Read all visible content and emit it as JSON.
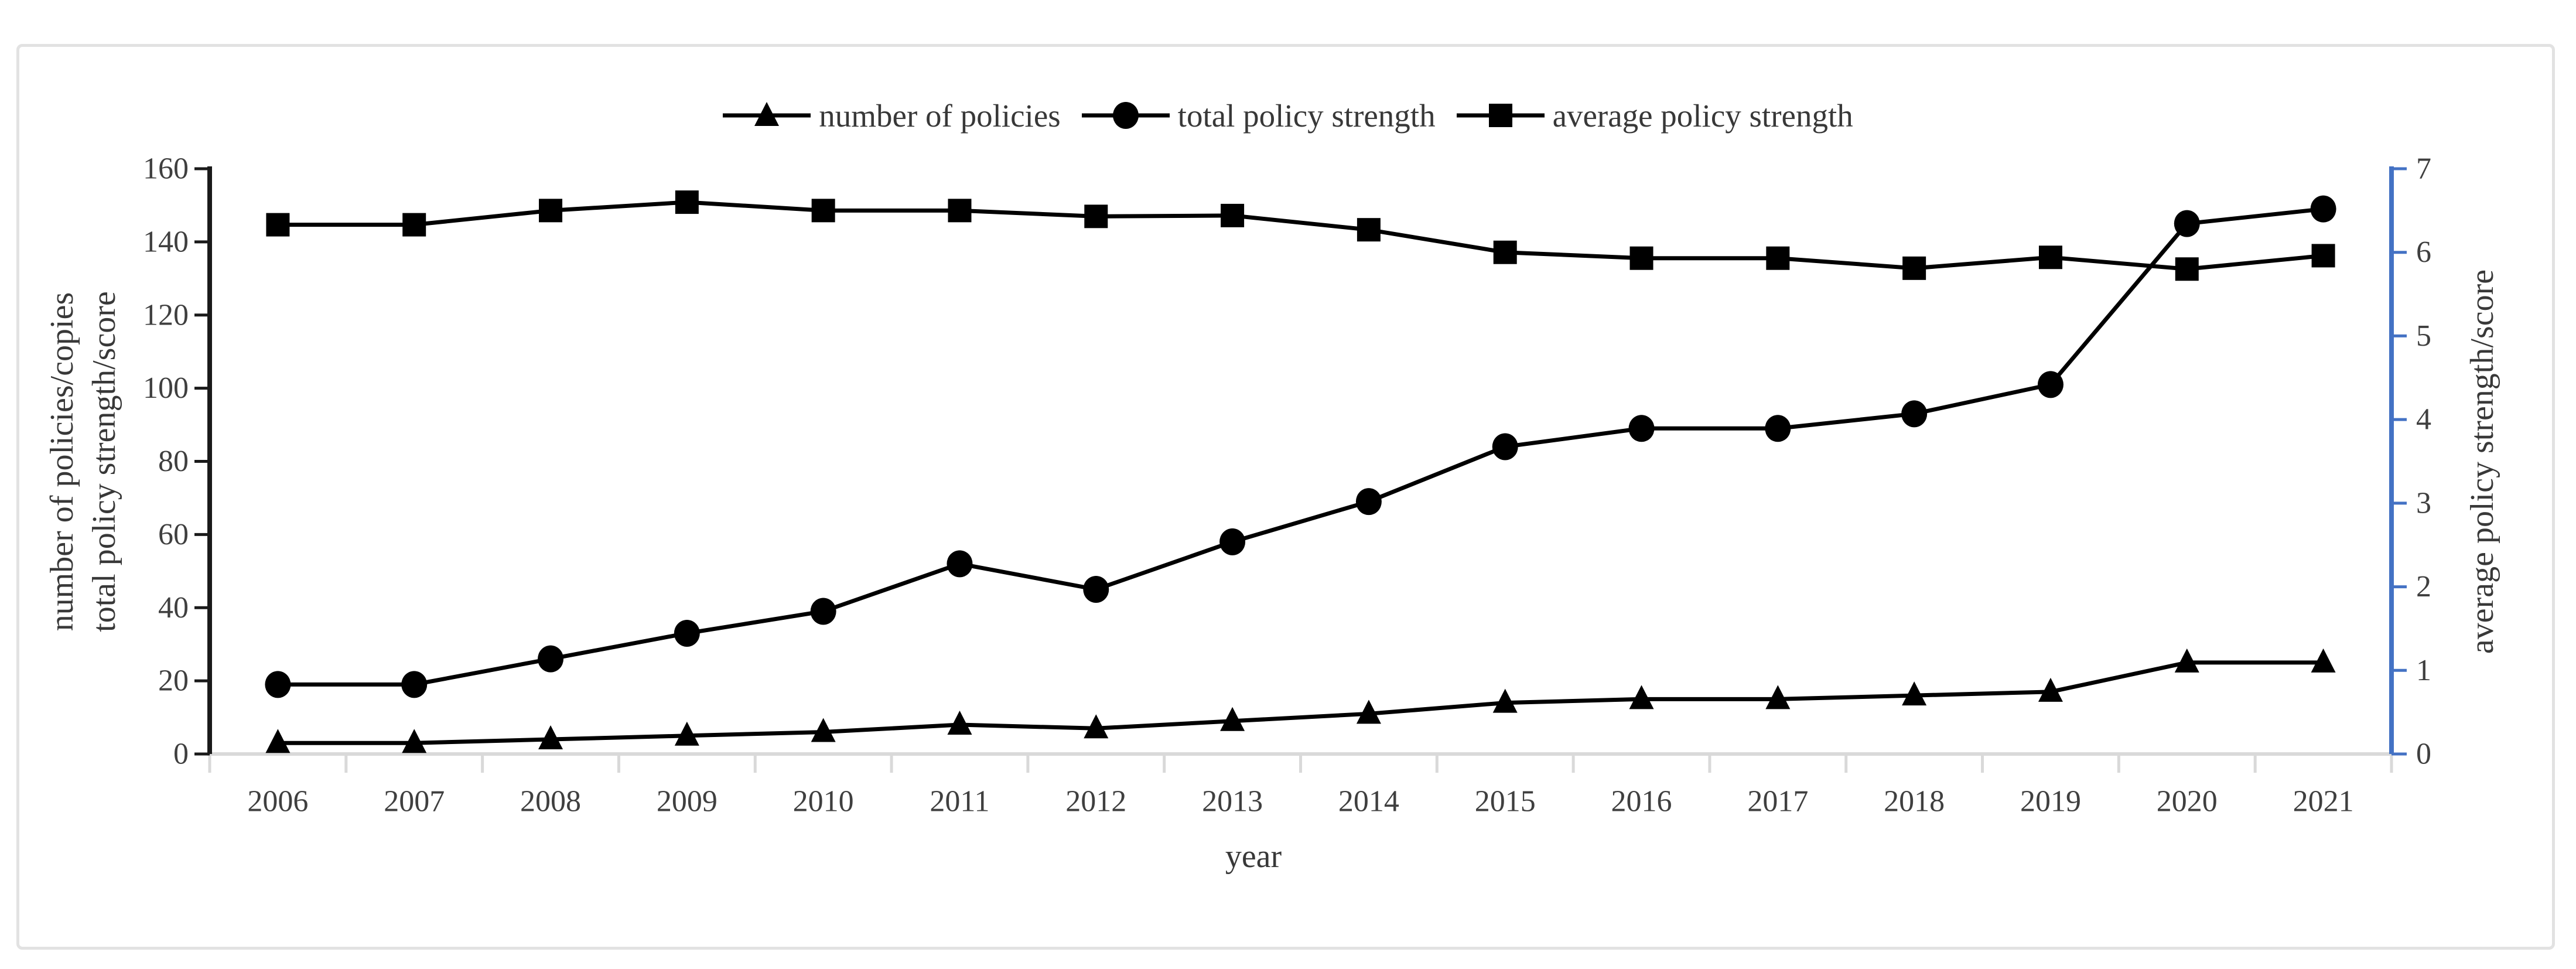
{
  "chart_data": {
    "type": "line",
    "title": "",
    "x_categories": [
      "2006",
      "2007",
      "2008",
      "2009",
      "2010",
      "2011",
      "2012",
      "2013",
      "2014",
      "2015",
      "2016",
      "2017",
      "2018",
      "2019",
      "2020",
      "2021"
    ],
    "xlabel": "year",
    "legend_position": "top-center",
    "grid": false,
    "left_axis": {
      "title_lines": [
        "number of policies/copies",
        "total policy strength/score"
      ],
      "ticks": [
        0,
        20,
        40,
        60,
        80,
        100,
        120,
        140,
        160
      ],
      "range": [
        0,
        160
      ]
    },
    "right_axis": {
      "title": "average policy strength/score",
      "ticks": [
        0,
        1,
        2,
        3,
        4,
        5,
        6,
        7
      ],
      "range": [
        0,
        7
      ]
    },
    "series": [
      {
        "name": "number of policies",
        "marker": "triangle",
        "axis": "left",
        "values": [
          3,
          3,
          4,
          5,
          6,
          8,
          7,
          9,
          11,
          14,
          15,
          15,
          16,
          17,
          25,
          25
        ]
      },
      {
        "name": "total policy strength",
        "marker": "circle",
        "axis": "left",
        "values": [
          19,
          19,
          26,
          33,
          39,
          52,
          45,
          58,
          69,
          84,
          89,
          89,
          93,
          101,
          145,
          149
        ]
      },
      {
        "name": "average policy strength",
        "marker": "square",
        "axis": "right",
        "values": [
          6.33,
          6.33,
          6.5,
          6.6,
          6.5,
          6.5,
          6.43,
          6.44,
          6.27,
          6.0,
          5.93,
          5.93,
          5.81,
          5.94,
          5.8,
          5.96
        ]
      }
    ],
    "colors": {
      "series": "#000000",
      "right_axis": "#4472c4",
      "x_axis_line": "#d9d9d9",
      "tick_text": "#3f3f3f",
      "frame_border": "#e2e2e2"
    }
  }
}
